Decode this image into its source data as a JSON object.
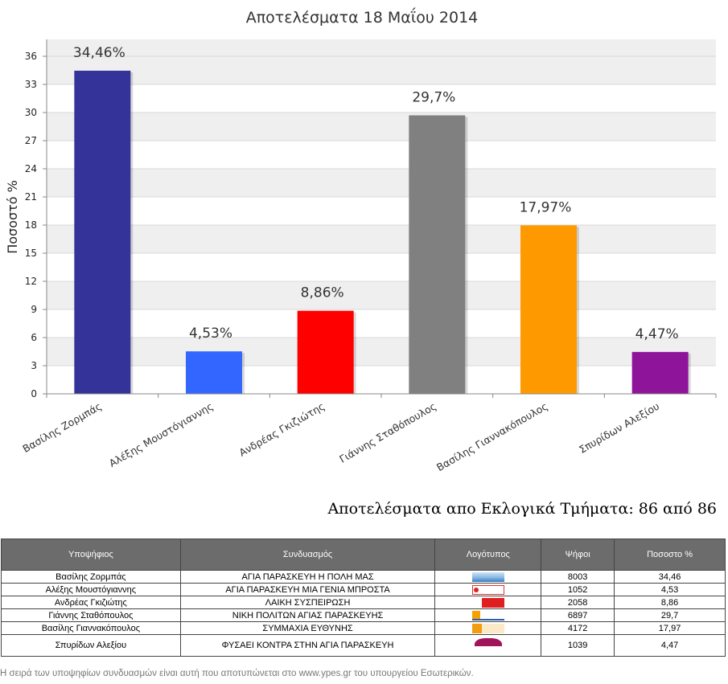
{
  "chart_data": {
    "type": "bar",
    "title": "Αποτελέσματα 18 Μαΐου 2014",
    "xlabel": "",
    "ylabel": "Ποσοστό %",
    "ylim": [
      0,
      36
    ],
    "yticks": [
      0,
      3,
      6,
      9,
      12,
      15,
      18,
      21,
      24,
      27,
      30,
      33,
      36
    ],
    "grid": true,
    "categories": [
      "Βασίλης Ζορμπάς",
      "Αλέξης Μουστόγιαννης",
      "Ανδρέας Γκιζιώτης",
      "Γιάννης Σταθόπουλος",
      "Βασίλης Γιαννακόπουλος",
      "Σπυρίδων Αλεξίου"
    ],
    "values": [
      34.46,
      4.53,
      8.86,
      29.7,
      17.97,
      4.47
    ],
    "data_labels": [
      "34,46%",
      "4,53%",
      "8,86%",
      "29,7%",
      "17,97%",
      "4,47%"
    ],
    "colors": [
      "#333399",
      "#3366ff",
      "#ff0000",
      "#808080",
      "#ff9900",
      "#8e1599"
    ]
  },
  "subtitle": "Αποτελέσματα απο Εκλογικά Τμήματα: 86 από 86",
  "table": {
    "headers": [
      "Υποψήφιος",
      "Συνδυασμός",
      "Λογότυπος",
      "Ψήφοι",
      "Ποσοστο %"
    ],
    "rows": [
      {
        "candidate": "Βασίλης Ζορμπάς",
        "party": "ΑΓΙΑ ΠΑΡΑΣΚΕΥΗ Η ΠΟΛΗ ΜΑΣ",
        "logo": "party-logo-1",
        "votes": "8003",
        "percent": "34,46"
      },
      {
        "candidate": "Αλέξης Μουστόγιαννης",
        "party": "ΑΓΙΑ ΠΑΡΑΣΚΕΥΗ ΜΙΑ ΓΕΝΙΑ ΜΠΡΟΣΤΑ",
        "logo": "party-logo-2",
        "votes": "1052",
        "percent": "4,53"
      },
      {
        "candidate": "Ανδρέας Γκιζιώτης",
        "party": "ΛΑΙΚΗ ΣΥΣΠΕΙΡΩΣΗ",
        "logo": "party-logo-3",
        "votes": "2058",
        "percent": "8,86"
      },
      {
        "candidate": "Γιάννης Σταθόπουλος",
        "party": "ΝΙΚΗ ΠΟΛΙΤΩΝ ΑΓΙΑΣ ΠΑΡΑΣΚΕΥΗΣ",
        "logo": "party-logo-4",
        "votes": "6897",
        "percent": "29,7"
      },
      {
        "candidate": "Βασίλης Γιαννακόπουλος",
        "party": "ΣΥΜΜΑΧΙΑ ΕΥΘΥΝΗΣ",
        "logo": "party-logo-5",
        "votes": "4172",
        "percent": "17,97"
      },
      {
        "candidate": "Σπυρίδων Αλεξίου",
        "party": "ΦΥΣΑΕΙ ΚΟΝΤΡΑ ΣΤΗΝ ΑΓΙΑ ΠΑΡΑΣΚΕΥΗ",
        "logo": "party-logo-6",
        "votes": "1039",
        "percent": "4,47"
      }
    ]
  },
  "footnote": "Η σειρά των υποψηφίων συνδυασμών είναι αυτή που αποτυπώνεται στο www.ypes.gr του υπουργείου Εσωτερικών."
}
